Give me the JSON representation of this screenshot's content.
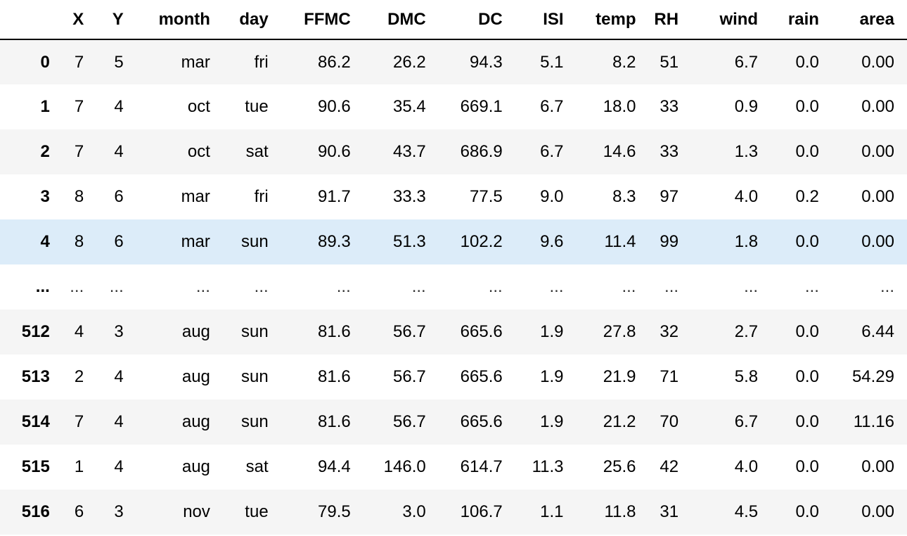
{
  "table": {
    "index_header": "",
    "columns": [
      "X",
      "Y",
      "month",
      "day",
      "FFMC",
      "DMC",
      "DC",
      "ISI",
      "temp",
      "RH",
      "wind",
      "rain",
      "area"
    ],
    "rows": [
      {
        "index": "0",
        "cells": [
          "7",
          "5",
          "mar",
          "fri",
          "86.2",
          "26.2",
          "94.3",
          "5.1",
          "8.2",
          "51",
          "6.7",
          "0.0",
          "0.00"
        ]
      },
      {
        "index": "1",
        "cells": [
          "7",
          "4",
          "oct",
          "tue",
          "90.6",
          "35.4",
          "669.1",
          "6.7",
          "18.0",
          "33",
          "0.9",
          "0.0",
          "0.00"
        ]
      },
      {
        "index": "2",
        "cells": [
          "7",
          "4",
          "oct",
          "sat",
          "90.6",
          "43.7",
          "686.9",
          "6.7",
          "14.6",
          "33",
          "1.3",
          "0.0",
          "0.00"
        ]
      },
      {
        "index": "3",
        "cells": [
          "8",
          "6",
          "mar",
          "fri",
          "91.7",
          "33.3",
          "77.5",
          "9.0",
          "8.3",
          "97",
          "4.0",
          "0.2",
          "0.00"
        ]
      },
      {
        "index": "4",
        "cells": [
          "8",
          "6",
          "mar",
          "sun",
          "89.3",
          "51.3",
          "102.2",
          "9.6",
          "11.4",
          "99",
          "1.8",
          "0.0",
          "0.00"
        ],
        "selected": true
      },
      {
        "index": "...",
        "cells": [
          "...",
          "...",
          "...",
          "...",
          "...",
          "...",
          "...",
          "...",
          "...",
          "...",
          "...",
          "...",
          "..."
        ],
        "ellipsis": true
      },
      {
        "index": "512",
        "cells": [
          "4",
          "3",
          "aug",
          "sun",
          "81.6",
          "56.7",
          "665.6",
          "1.9",
          "27.8",
          "32",
          "2.7",
          "0.0",
          "6.44"
        ]
      },
      {
        "index": "513",
        "cells": [
          "2",
          "4",
          "aug",
          "sun",
          "81.6",
          "56.7",
          "665.6",
          "1.9",
          "21.9",
          "71",
          "5.8",
          "0.0",
          "54.29"
        ]
      },
      {
        "index": "514",
        "cells": [
          "7",
          "4",
          "aug",
          "sun",
          "81.6",
          "56.7",
          "665.6",
          "1.9",
          "21.2",
          "70",
          "6.7",
          "0.0",
          "11.16"
        ]
      },
      {
        "index": "515",
        "cells": [
          "1",
          "4",
          "aug",
          "sat",
          "94.4",
          "146.0",
          "614.7",
          "11.3",
          "25.6",
          "42",
          "4.0",
          "0.0",
          "0.00"
        ]
      },
      {
        "index": "516",
        "cells": [
          "6",
          "3",
          "nov",
          "tue",
          "79.5",
          "3.0",
          "106.7",
          "1.1",
          "11.8",
          "31",
          "4.5",
          "0.0",
          "0.00"
        ]
      }
    ]
  },
  "colors": {
    "stripe": "#f5f5f5",
    "row_hover": "#dcecf9",
    "header_rule": "#000000"
  }
}
